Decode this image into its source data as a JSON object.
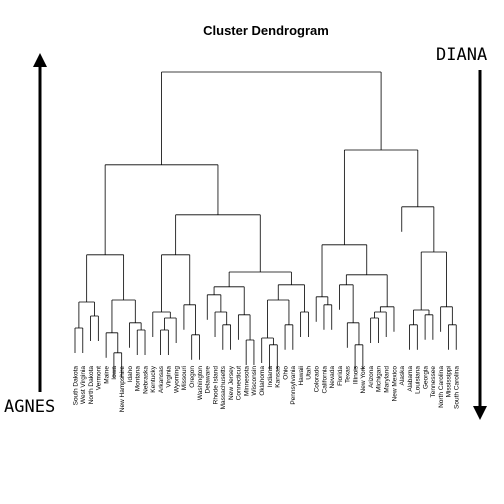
{
  "chart_data": {
    "type": "dendrogram",
    "title": "Cluster Dendrogram",
    "left_label": "AGNES",
    "right_label": "DIANA",
    "tree": {
      "height": 7.2,
      "children": [
        {
          "height": 4.88,
          "children": [
            {
              "height": 2.63,
              "children": [
                {
                  "height": 1.45,
                  "children": [
                    {
                      "height": 0.8,
                      "children": [
                        "South Dakota",
                        "West Virginia"
                      ]
                    },
                    {
                      "height": 1.1,
                      "children": [
                        "North Dakota",
                        "Vermont"
                      ]
                    }
                  ]
                },
                {
                  "height": 1.5,
                  "children": [
                    {
                      "height": 0.68,
                      "children": [
                        "Maine",
                        {
                          "height": 0.18,
                          "children": [
                            "Iowa",
                            "New Hampshire"
                          ]
                        }
                      ]
                    },
                    {
                      "height": 0.93,
                      "children": [
                        "Idaho",
                        {
                          "height": 0.75,
                          "children": [
                            "Montana",
                            "Nebraska"
                          ]
                        }
                      ]
                    }
                  ]
                }
              ]
            },
            {
              "height": 3.63,
              "children": [
                {
                  "height": 2.63,
                  "children": [
                    {
                      "height": 1.2,
                      "children": [
                        "Kentucky",
                        {
                          "height": 1.05,
                          "children": [
                            {
                              "height": 0.75,
                              "children": [
                                "Arkansas",
                                "Virginia"
                              ]
                            },
                            "Wyoming"
                          ]
                        }
                      ]
                    },
                    {
                      "height": 1.38,
                      "children": [
                        "Missouri",
                        {
                          "height": 0.63,
                          "children": [
                            "Oregon",
                            "Washington"
                          ]
                        }
                      ]
                    }
                  ]
                },
                {
                  "height": 2.2,
                  "children": [
                    {
                      "height": 1.83,
                      "children": [
                        {
                          "height": 1.63,
                          "children": [
                            "Delaware",
                            {
                              "height": 1.2,
                              "children": [
                                "Rhode Island",
                                {
                                  "height": 0.88,
                                  "children": [
                                    "Massachusetts",
                                    "New Jersey"
                                  ]
                                }
                              ]
                            }
                          ]
                        },
                        {
                          "height": 1.13,
                          "children": [
                            "Connecticut",
                            {
                              "height": 0.5,
                              "children": [
                                "Minnesota",
                                "Wisconsin"
                              ]
                            }
                          ]
                        }
                      ]
                    },
                    {
                      "height": 1.88,
                      "children": [
                        {
                          "height": 1.5,
                          "children": [
                            {
                              "height": 0.55,
                              "children": [
                                "Oklahoma",
                                {
                                  "height": 0.38,
                                  "children": [
                                    "Indiana",
                                    "Kansas"
                                  ]
                                }
                              ]
                            },
                            {
                              "height": 0.88,
                              "children": [
                                "Ohio",
                                "Pennsylvania"
                              ]
                            }
                          ]
                        },
                        {
                          "height": 1.2,
                          "children": [
                            "Hawaii",
                            "Utah"
                          ]
                        }
                      ]
                    }
                  ]
                }
              ]
            }
          ]
        },
        {
          "height": 5.25,
          "children": [
            {
              "height": 2.88,
              "children": [
                {
                  "height": 1.58,
                  "children": [
                    "Colorado",
                    {
                      "height": 1.38,
                      "children": [
                        "California",
                        "Nevada"
                      ]
                    }
                  ]
                },
                {
                  "height": 2.13,
                  "children": [
                    {
                      "height": 1.88,
                      "children": [
                        "Florida",
                        {
                          "height": 0.93,
                          "children": [
                            "Texas",
                            {
                              "height": 0.38,
                              "children": [
                                "Illinois",
                                "New York"
                              ]
                            }
                          ]
                        }
                      ]
                    },
                    {
                      "height": 1.33,
                      "children": [
                        {
                          "height": 1.2,
                          "children": [
                            {
                              "height": 1.05,
                              "children": [
                                "Arizona",
                                "Michigan"
                              ]
                            },
                            "Maryland"
                          ]
                        },
                        "New Mexico"
                      ]
                    }
                  ]
                }
              ]
            },
            {
              "height": 3.83,
              "children": [
                "Alaska",
                {
                  "height": 2.7,
                  "children": [
                    {
                      "height": 1.25,
                      "children": [
                        {
                          "height": 0.88,
                          "children": [
                            "Alabama",
                            "Louisiana"
                          ]
                        },
                        {
                          "height": 1.13,
                          "children": [
                            "Georgia",
                            "Tennessee"
                          ]
                        }
                      ]
                    },
                    {
                      "height": 1.33,
                      "children": [
                        "North Carolina",
                        {
                          "height": 0.88,
                          "children": [
                            "Mississippi",
                            "South Carolina"
                          ]
                        }
                      ]
                    }
                  ]
                }
              ]
            }
          ]
        }
      ]
    }
  }
}
